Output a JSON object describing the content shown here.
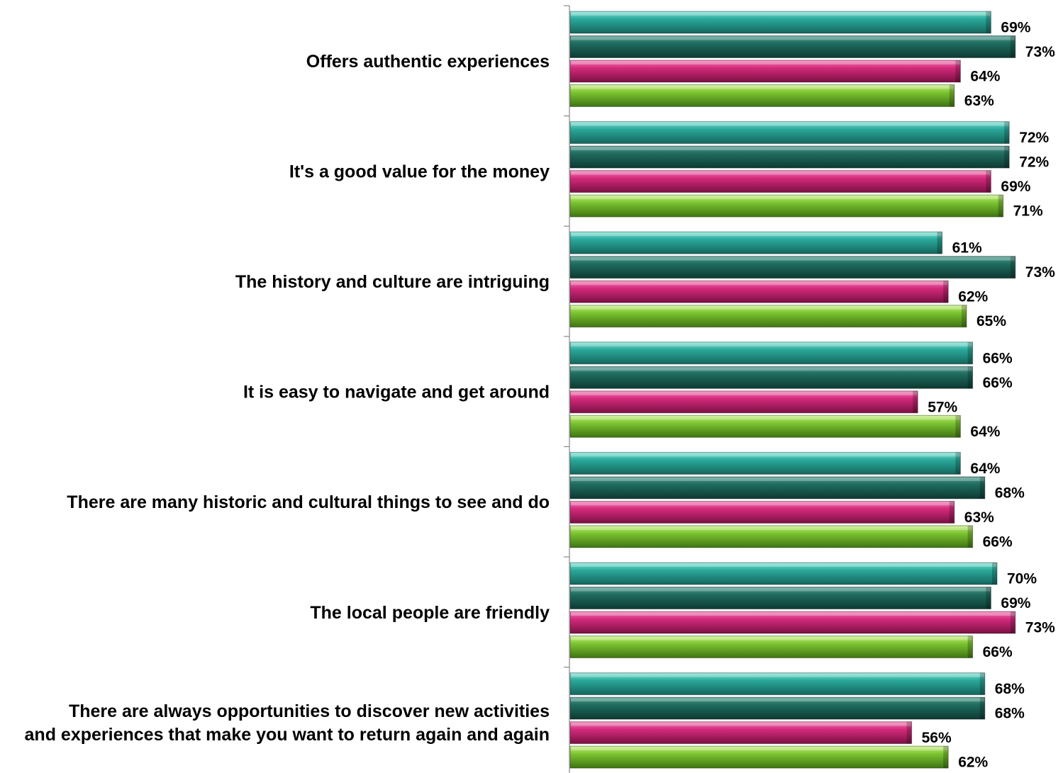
{
  "chart_data": {
    "type": "bar",
    "orientation": "horizontal",
    "categories": [
      "Offers authentic experiences",
      "It's a good value for the money",
      "The history and culture are intriguing",
      "It is easy to navigate and get around",
      "There are many historic and cultural things to see and do",
      "The local people are friendly",
      "There are always opportunities to discover new activities\nand experiences that make you want to return again and again"
    ],
    "series": [
      {
        "color": "#2aa89a",
        "values": [
          69,
          72,
          61,
          66,
          64,
          70,
          68
        ]
      },
      {
        "color": "#1f6b5e",
        "values": [
          73,
          72,
          73,
          66,
          68,
          69,
          68
        ]
      },
      {
        "color": "#d42a7c",
        "values": [
          64,
          69,
          62,
          57,
          63,
          73,
          56
        ]
      },
      {
        "color": "#7cc431",
        "values": [
          63,
          71,
          65,
          64,
          66,
          66,
          62
        ]
      }
    ],
    "value_suffix": "%",
    "xlim": [
      0,
      100
    ],
    "grid": false,
    "legend": "none"
  }
}
